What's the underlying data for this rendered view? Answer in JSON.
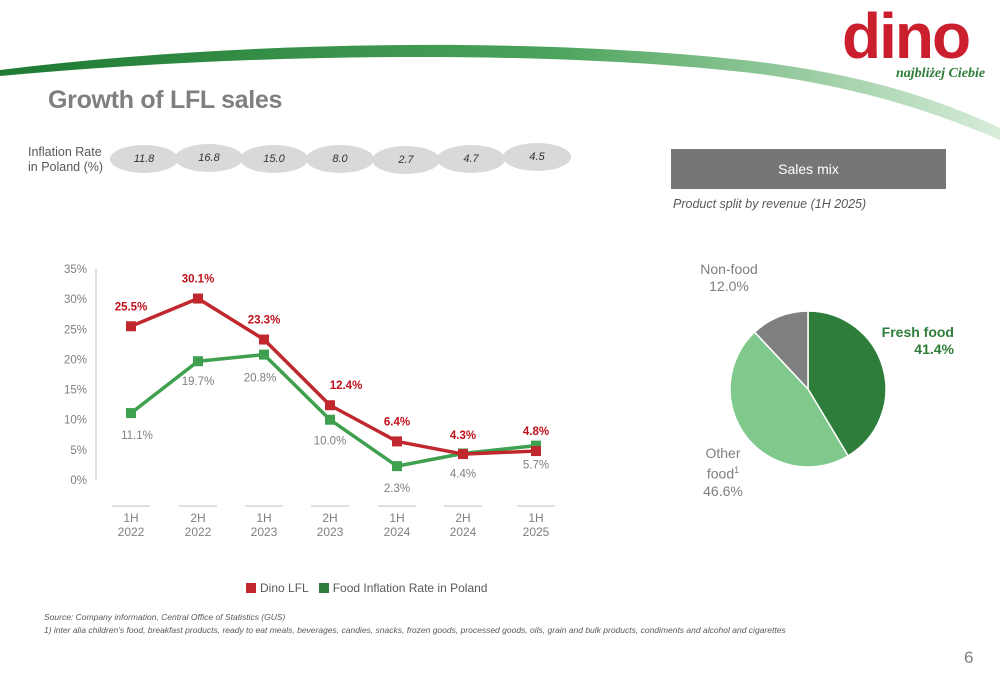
{
  "brand": {
    "logo_text": "dino",
    "tagline": "najbliżej Ciebie",
    "red": "#cc1f2e",
    "green": "#2e7d3a"
  },
  "title": "Growth of LFL sales",
  "inflation": {
    "label_line1": "Inflation Rate",
    "label_line2": "in Poland (%)",
    "values": [
      "11.8",
      "16.8",
      "15.0",
      "8.0",
      "2.7",
      "4.7",
      "4.5"
    ]
  },
  "sales_mix": {
    "header": "Sales mix",
    "subtitle": "Product split by revenue (1H 2025)"
  },
  "chart_data": [
    {
      "type": "line",
      "categories": [
        "1H\n2022",
        "2H\n2022",
        "1H\n2023",
        "2H\n2023",
        "1H\n2024",
        "2H\n2024",
        "1H\n2025"
      ],
      "category_lines": [
        [
          "1H",
          "2022"
        ],
        [
          "2H",
          "2022"
        ],
        [
          "1H",
          "2023"
        ],
        [
          "2H",
          "2023"
        ],
        [
          "1H",
          "2024"
        ],
        [
          "2H",
          "2024"
        ],
        [
          "1H",
          "2025"
        ]
      ],
      "series": [
        {
          "name": "Dino LFL",
          "values": [
            25.5,
            30.1,
            23.3,
            12.4,
            6.4,
            4.3,
            4.8
          ],
          "labels": [
            "25.5%",
            "30.1%",
            "23.3%",
            "12.4%",
            "6.4%",
            "4.3%",
            "4.8%"
          ],
          "color": "#c0282d"
        },
        {
          "name": "Food Inflation Rate in Poland",
          "values": [
            11.1,
            19.7,
            20.8,
            10.0,
            2.3,
            4.4,
            5.7
          ],
          "labels": [
            "11.1%",
            "19.7%",
            "20.8%",
            "10.0%",
            "2.3%",
            "4.4%",
            "5.7%"
          ],
          "color": "#3fa04f"
        }
      ],
      "yticks": [
        "0%",
        "5%",
        "10%",
        "15%",
        "20%",
        "25%",
        "30%",
        "35%"
      ],
      "ylim": [
        0,
        35
      ],
      "grid": false,
      "legend": "bottom"
    },
    {
      "type": "pie",
      "slices": [
        {
          "name": "Fresh food",
          "value": 41.4,
          "label": "41.4%",
          "color": "#2e7d3a"
        },
        {
          "name_line1": "Other",
          "name_line2": "food",
          "name_sup": "1",
          "value": 46.6,
          "label": "46.6%",
          "color": "#80c98c"
        },
        {
          "name": "Non-food",
          "value": 12.0,
          "label": "12.0%",
          "color": "#7f7f7f"
        }
      ]
    }
  ],
  "source": "Source:   Company information, Central Office of Statistics (GUS)",
  "footnote": "1) inter alia children’s food, breakfast products, ready to eat meals, beverages, candies, snacks, frozen goods, processed goods, oils, grain and bulk products, condiments and alcohol and cigarettes",
  "page_number": "6"
}
